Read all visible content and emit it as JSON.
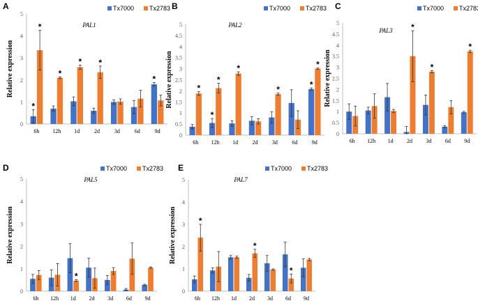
{
  "chart_data": [
    {
      "type": "bar",
      "panel": "A",
      "title": "PAL1",
      "ylabel": "Relative expression",
      "ylim": [
        0,
        5
      ],
      "yticks": [
        "0",
        "1",
        "2",
        "3",
        "4",
        "5"
      ],
      "categories": [
        "6h",
        "12h",
        "1d",
        "2d",
        "3d",
        "6d",
        "9d"
      ],
      "series": [
        {
          "name": "Tx7000",
          "color": "#4472C4",
          "values": [
            0.35,
            0.7,
            1.03,
            0.6,
            1.0,
            0.77,
            1.8
          ],
          "errors": [
            0.3,
            0.12,
            0.2,
            0.12,
            0.1,
            0.3,
            0.08
          ],
          "stars": [
            true,
            false,
            false,
            false,
            false,
            false,
            true
          ]
        },
        {
          "name": "Tx2783",
          "color": "#ED7D31",
          "values": [
            3.35,
            2.1,
            2.58,
            2.35,
            1.02,
            1.15,
            1.07
          ],
          "errors": [
            0.9,
            0.04,
            0.1,
            0.28,
            0.12,
            0.38,
            0.25
          ],
          "stars": [
            true,
            true,
            true,
            true,
            false,
            false,
            false
          ]
        }
      ]
    },
    {
      "type": "bar",
      "panel": "B",
      "title": "PAL2",
      "ylabel": "Relative expression",
      "ylim": [
        0,
        5
      ],
      "yticks": [
        "0",
        "0.5",
        "1",
        "1.5",
        "2",
        "2.5",
        "3",
        "3.5",
        "4",
        "4.5",
        "5"
      ],
      "categories": [
        "6h",
        "12h",
        "1d",
        "2d",
        "3d",
        "6d",
        "9d"
      ],
      "series": [
        {
          "name": "Tx7000",
          "color": "#4472C4",
          "values": [
            0.38,
            0.55,
            0.53,
            0.65,
            0.8,
            1.45,
            2.08
          ],
          "errors": [
            0.1,
            0.2,
            0.12,
            0.18,
            0.25,
            0.6,
            0.05
          ],
          "stars": [
            false,
            true,
            false,
            false,
            false,
            false,
            true
          ]
        },
        {
          "name": "Tx2783",
          "color": "#ED7D31",
          "values": [
            1.88,
            2.12,
            2.78,
            0.62,
            1.85,
            0.7,
            3.0
          ],
          "errors": [
            0.08,
            0.22,
            0.08,
            0.12,
            0.05,
            0.4,
            0.03
          ],
          "stars": [
            true,
            true,
            true,
            false,
            true,
            false,
            true
          ]
        }
      ]
    },
    {
      "type": "bar",
      "panel": "C",
      "title": "PAL3",
      "ylabel": "Relative expression",
      "ylim": [
        0,
        5
      ],
      "yticks": [
        "0",
        "0.5",
        "1",
        "1.5",
        "2",
        "2.5",
        "3",
        "3.5",
        "4",
        "4.5",
        "5"
      ],
      "categories": [
        "6h",
        "12h",
        "1d",
        "2d",
        "3d",
        "6d",
        "9d"
      ],
      "series": [
        {
          "name": "Tx7000",
          "color": "#4472C4",
          "values": [
            1.0,
            1.05,
            1.65,
            0.08,
            1.3,
            0.32,
            0.97
          ],
          "errors": [
            0.35,
            0.15,
            0.62,
            0.25,
            0.45,
            0.05,
            0.04
          ],
          "stars": [
            false,
            false,
            false,
            false,
            false,
            false,
            false
          ]
        },
        {
          "name": "Tx2783",
          "color": "#ED7D31",
          "values": [
            0.8,
            1.25,
            1.03,
            3.5,
            2.8,
            1.2,
            3.72
          ],
          "errors": [
            0.45,
            0.55,
            0.07,
            1.15,
            0.05,
            0.3,
            0.05
          ],
          "stars": [
            false,
            false,
            false,
            true,
            true,
            false,
            true
          ]
        }
      ]
    },
    {
      "type": "bar",
      "panel": "D",
      "title": "PAL5",
      "ylabel": "Relative expression",
      "ylim": [
        0,
        5
      ],
      "yticks": [
        "0",
        "1",
        "2",
        "3",
        "4",
        "5"
      ],
      "categories": [
        "6h",
        "12h",
        "1d",
        "2d",
        "3d",
        "6d",
        "9d"
      ],
      "series": [
        {
          "name": "Tx7000",
          "color": "#4472C4",
          "values": [
            0.55,
            0.6,
            1.47,
            1.05,
            0.5,
            0.07,
            0.28
          ],
          "errors": [
            0.2,
            0.35,
            0.65,
            0.42,
            0.2,
            0.05,
            0.03
          ],
          "stars": [
            false,
            false,
            false,
            false,
            false,
            false,
            false
          ]
        },
        {
          "name": "Tx2783",
          "color": "#ED7D31",
          "values": [
            0.72,
            0.73,
            0.47,
            0.58,
            0.9,
            1.45,
            1.05
          ],
          "errors": [
            0.2,
            0.5,
            0.04,
            0.45,
            0.15,
            0.7,
            0.03
          ],
          "stars": [
            false,
            false,
            true,
            false,
            false,
            false,
            false
          ]
        }
      ]
    },
    {
      "type": "bar",
      "panel": "E",
      "title": "PAL7",
      "ylabel": "Relative expression",
      "ylim": [
        0,
        5
      ],
      "yticks": [
        "0",
        "1",
        "2",
        "3",
        "4",
        "5"
      ],
      "categories": [
        "6h",
        "12h",
        "1d",
        "2d",
        "3d",
        "6d",
        "9d"
      ],
      "series": [
        {
          "name": "Tx7000",
          "color": "#4472C4",
          "values": [
            0.53,
            0.93,
            1.52,
            0.6,
            1.25,
            1.65,
            1.05
          ],
          "errors": [
            0.15,
            0.12,
            0.08,
            0.15,
            0.35,
            0.55,
            0.4
          ],
          "stars": [
            false,
            false,
            false,
            false,
            false,
            false,
            false
          ]
        },
        {
          "name": "Tx2783",
          "color": "#ED7D31",
          "values": [
            2.4,
            1.1,
            1.52,
            1.7,
            0.97,
            0.57,
            1.42
          ],
          "errors": [
            0.6,
            0.68,
            0.05,
            0.18,
            0.03,
            0.2,
            0.05
          ],
          "stars": [
            true,
            false,
            false,
            true,
            false,
            true,
            false
          ]
        }
      ]
    }
  ]
}
